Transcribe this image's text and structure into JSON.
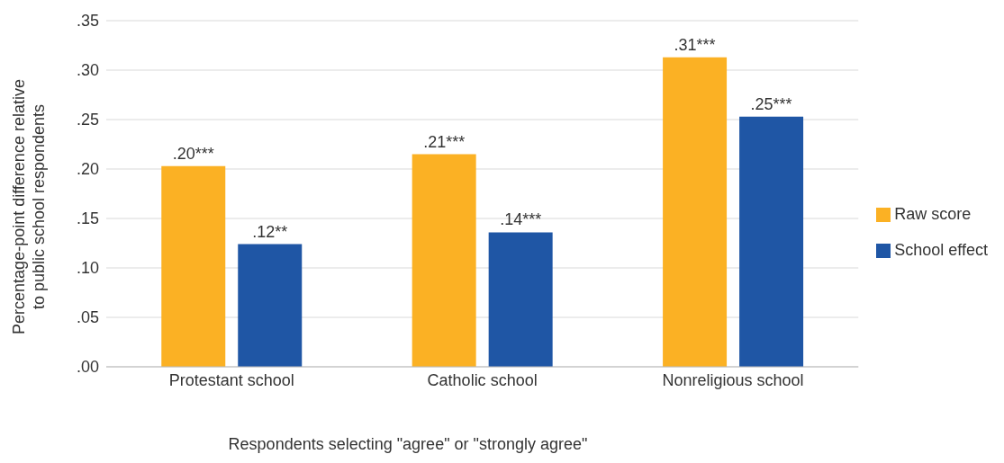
{
  "chart_data": {
    "type": "bar",
    "xlabel": "Respondents selecting \"agree\" or \"strongly agree\"",
    "ylabel": "Percentage-point difference relative\nto public school respondents",
    "categories": [
      "Protestant school",
      "Catholic school",
      "Nonreligious school"
    ],
    "series": [
      {
        "name": "Raw score",
        "color": "#fbb124",
        "values": [
          0.203,
          0.215,
          0.313
        ],
        "value_labels": [
          ".20***",
          ".21***",
          ".31***"
        ]
      },
      {
        "name": "School effect",
        "color": "#1f56a5",
        "values": [
          0.124,
          0.136,
          0.253
        ],
        "value_labels": [
          ".12**",
          ".14***",
          ".25***"
        ]
      }
    ],
    "ylim": [
      0,
      0.35
    ],
    "yticks": [
      {
        "value": 0,
        "label": ".00"
      },
      {
        "value": 0.05,
        "label": ".05"
      },
      {
        "value": 0.1,
        "label": ".10"
      },
      {
        "value": 0.15,
        "label": ".15"
      },
      {
        "value": 0.2,
        "label": ".20"
      },
      {
        "value": 0.25,
        "label": ".25"
      },
      {
        "value": 0.3,
        "label": ".30"
      },
      {
        "value": 0.35,
        "label": ".35"
      }
    ],
    "grid": "y",
    "legend": "right"
  }
}
